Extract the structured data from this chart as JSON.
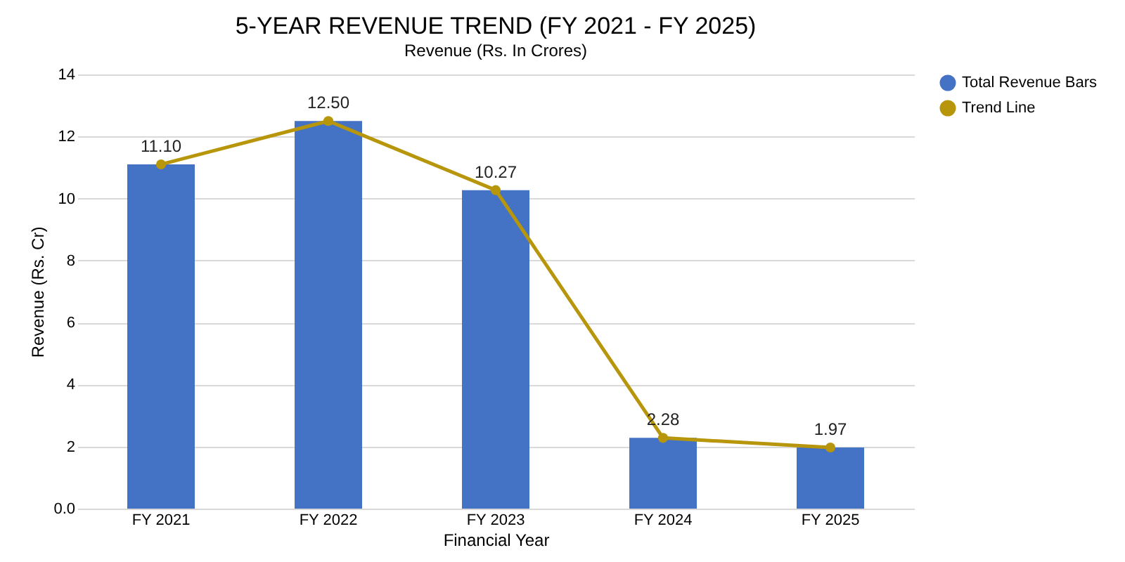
{
  "chart_data": {
    "type": "bar",
    "title": "5-YEAR REVENUE TREND (FY 2021 - FY 2025)",
    "subtitle": "Revenue (Rs. In Crores)",
    "xlabel": "Financial Year",
    "ylabel": "Revenue (Rs. Cr)",
    "categories": [
      "FY 2021",
      "FY 2022",
      "FY 2023",
      "FY 2024",
      "FY 2025"
    ],
    "series": [
      {
        "name": "Total Revenue Bars",
        "color": "#4472c4",
        "values": [
          11.1,
          12.5,
          10.27,
          2.28,
          1.97
        ]
      },
      {
        "name": "Trend Line",
        "type": "line",
        "color": "#b8960c",
        "values": [
          11.1,
          12.5,
          10.27,
          2.28,
          1.97
        ],
        "value_labels": [
          "11.10",
          "12.50",
          "10.27",
          "2.28",
          "1.97"
        ]
      }
    ],
    "ylim": [
      0,
      14
    ],
    "yticks": [
      {
        "value": 0,
        "label": "0.0"
      },
      2,
      4,
      6,
      8,
      10,
      12,
      14
    ],
    "grid": "y",
    "legend": "right",
    "marker": "circle",
    "line_style": "solid"
  }
}
